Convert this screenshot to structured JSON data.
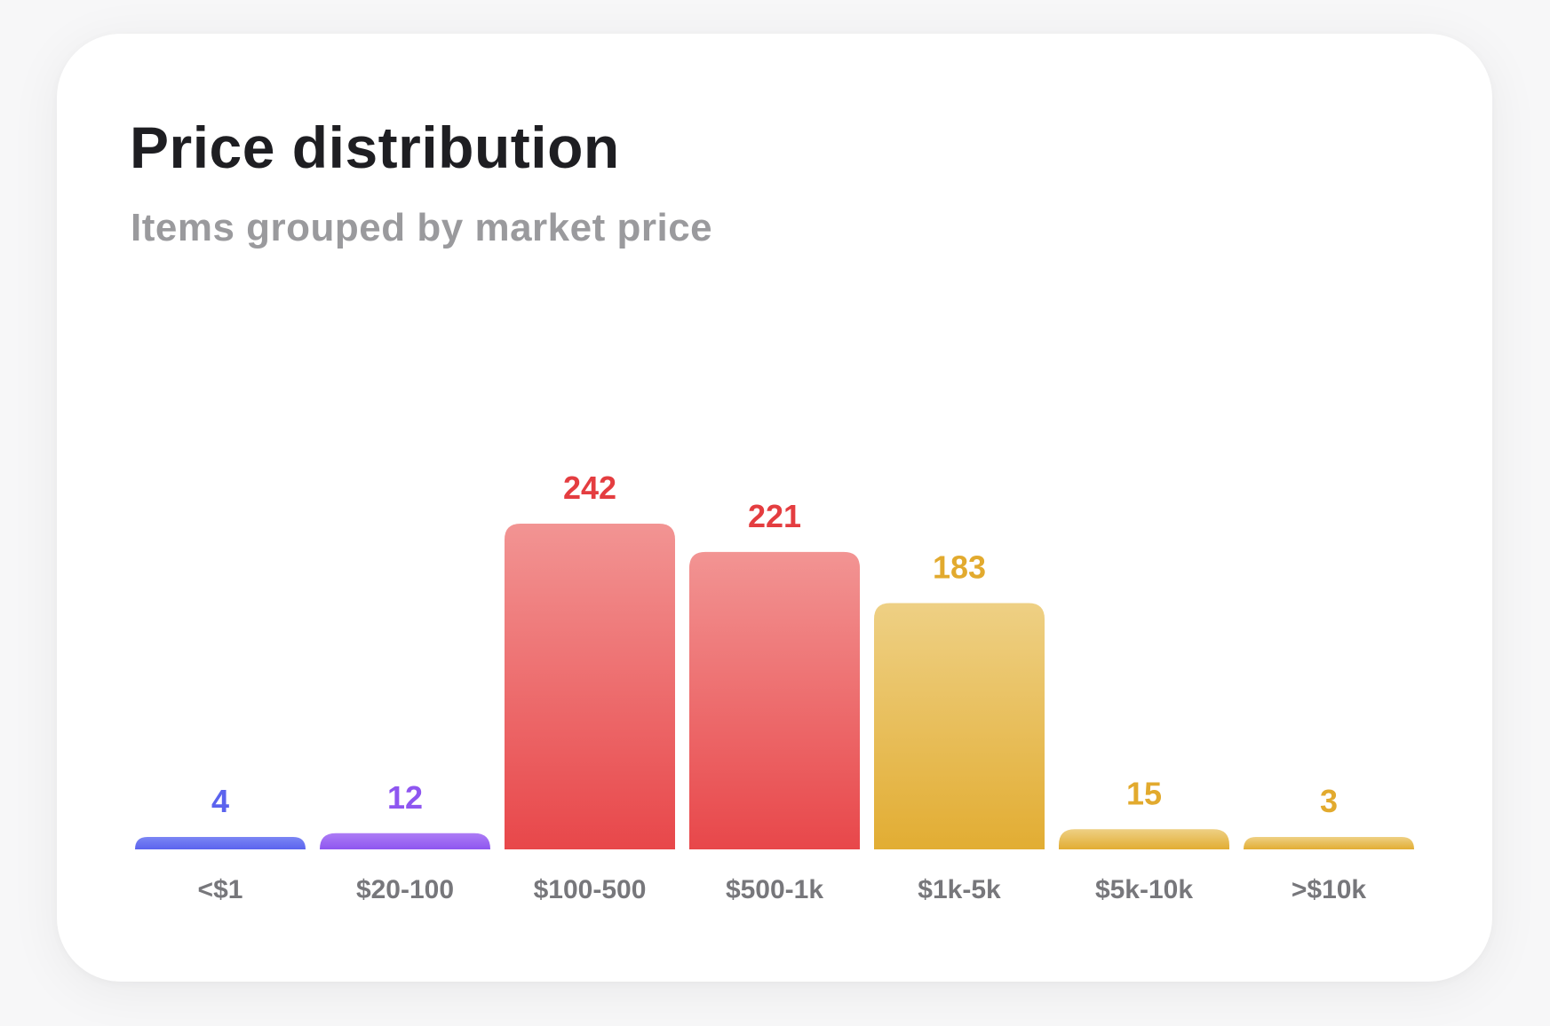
{
  "chart_data": {
    "type": "bar",
    "title": "Price distribution",
    "subtitle": "Items grouped by market price",
    "xlabel": "",
    "ylabel": "",
    "categories": [
      "<$1",
      "$20-100",
      "$100-500",
      "$500-1k",
      "$1k-5k",
      "$5k-10k",
      ">$10k"
    ],
    "values": [
      4,
      12,
      242,
      221,
      183,
      15,
      3
    ],
    "value_labels": [
      "4",
      "12",
      "242",
      "221",
      "183",
      "15",
      "3"
    ],
    "ylim": [
      0,
      242
    ],
    "grid": false,
    "legend": "none",
    "colors": [
      {
        "top": "#7b86f4",
        "bottom": "#5b63ee",
        "label": "#5b63ee"
      },
      {
        "top": "#ad7cf5",
        "bottom": "#8e56f0",
        "label": "#8e56f0"
      },
      {
        "top": "#f29493",
        "bottom": "#e8474a",
        "label": "#e43d40"
      },
      {
        "top": "#f29493",
        "bottom": "#e8474a",
        "label": "#e43d40"
      },
      {
        "top": "#eed084",
        "bottom": "#e2ad33",
        "label": "#e2aa2e"
      },
      {
        "top": "#eed084",
        "bottom": "#e2ad33",
        "label": "#e2aa2e"
      },
      {
        "top": "#eed084",
        "bottom": "#e2ad33",
        "label": "#e2aa2e"
      }
    ]
  }
}
